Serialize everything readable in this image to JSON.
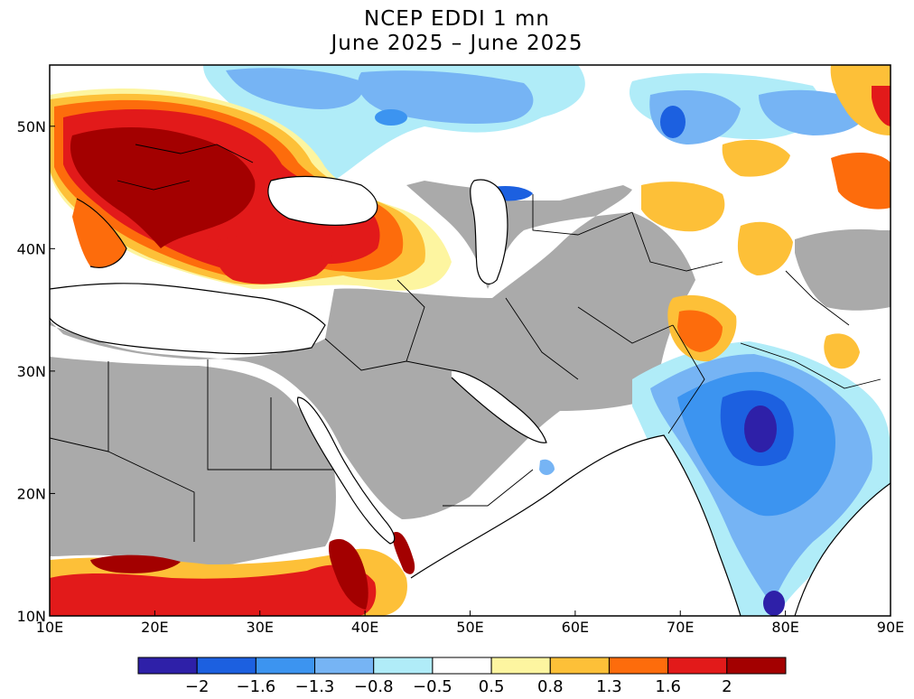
{
  "title_line1": "NCEP EDDI 1 mn",
  "title_line2": "June 2025 – June 2025",
  "map": {
    "lon_range": [
      10,
      90
    ],
    "lat_range": [
      10,
      55
    ],
    "x_ticks": [
      "10E",
      "20E",
      "30E",
      "40E",
      "50E",
      "60E",
      "70E",
      "80E",
      "90E"
    ],
    "y_ticks": [
      "10N",
      "20N",
      "30N",
      "40N",
      "50N"
    ],
    "masked_color": "#aaaaaa",
    "ocean_color": "#ffffff"
  },
  "colorbar": {
    "colors": [
      "#2e20a8",
      "#1c60e0",
      "#3c94f0",
      "#76b4f4",
      "#b0ecf8",
      "#ffffff",
      "#fdf5a0",
      "#fdc038",
      "#fd6c0c",
      "#e21a1a",
      "#a30000"
    ],
    "tick_labels": [
      "−2",
      "−1.6",
      "−1.3",
      "−0.8",
      "−0.5",
      "0.5",
      "0.8",
      "1.3",
      "1.6",
      "2"
    ]
  }
}
